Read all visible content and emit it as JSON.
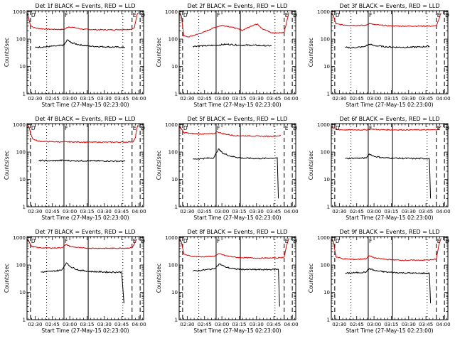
{
  "colors": {
    "events": "#000000",
    "lld": "#dd0000",
    "background": "#ffffff"
  },
  "shared": {
    "ylabel": "Counts/sec",
    "xlabel": "Start Time (27-May-15 02:23:00)",
    "x_ticks": [
      "02:30",
      "02:45",
      "03:00",
      "03:15",
      "03:30",
      "03:45",
      "04:00"
    ],
    "y_ticks": [
      "1",
      "10",
      "100",
      "1000"
    ],
    "y_scale": "log",
    "ylim": [
      1,
      1100
    ],
    "x_range_minutes": [
      0,
      101
    ],
    "x_tick_minutes": [
      7,
      22,
      37,
      52,
      67,
      82,
      97
    ],
    "markers": [
      "D",
      "F",
      "E",
      "D"
    ]
  },
  "chart_data": [
    {
      "type": "line",
      "title": "Det 1f BLACK = Events, RED = LLD",
      "red_segments": [
        [
          [
            0,
            900
          ],
          [
            1,
            700
          ],
          [
            3,
            320
          ],
          [
            6,
            260
          ],
          [
            12,
            240
          ],
          [
            20,
            230
          ],
          [
            32,
            225
          ],
          [
            36,
            280
          ],
          [
            40,
            270
          ],
          [
            48,
            230
          ],
          [
            60,
            220
          ],
          [
            72,
            220
          ],
          [
            85,
            225
          ],
          [
            91,
            230
          ],
          [
            93,
            260
          ],
          [
            95,
            700
          ],
          [
            96,
            900
          ]
        ]
      ],
      "black_segments": [
        [
          [
            7,
            50
          ],
          [
            15,
            52
          ],
          [
            25,
            56
          ],
          [
            32,
            60
          ],
          [
            35,
            95
          ],
          [
            38,
            75
          ],
          [
            45,
            62
          ],
          [
            55,
            55
          ],
          [
            70,
            52
          ],
          [
            85,
            50
          ]
        ]
      ],
      "vlines": [
        {
          "x": 3,
          "style": "dash"
        },
        {
          "x": 17,
          "style": "dot"
        },
        {
          "x": 32,
          "style": "solid"
        },
        {
          "x": 53,
          "style": "solid"
        },
        {
          "x": 83,
          "style": "dot"
        },
        {
          "x": 91,
          "style": "dash"
        },
        {
          "x": 98,
          "style": "dash"
        }
      ]
    },
    {
      "type": "line",
      "title": "Det 2f BLACK = Events, RED = LLD",
      "red_segments": [
        [
          [
            0,
            950
          ],
          [
            2,
            700
          ],
          [
            4,
            130
          ],
          [
            8,
            120
          ],
          [
            20,
            170
          ],
          [
            30,
            260
          ],
          [
            37,
            320
          ],
          [
            45,
            280
          ],
          [
            55,
            210
          ],
          [
            62,
            300
          ],
          [
            68,
            360
          ],
          [
            72,
            240
          ],
          [
            80,
            170
          ],
          [
            88,
            170
          ],
          [
            91,
            180
          ],
          [
            93,
            400
          ],
          [
            95,
            950
          ]
        ]
      ],
      "black_segments": [
        [
          [
            12,
            55
          ],
          [
            22,
            57
          ],
          [
            32,
            60
          ],
          [
            42,
            65
          ],
          [
            52,
            60
          ],
          [
            62,
            60
          ],
          [
            72,
            58
          ],
          [
            80,
            57
          ]
        ]
      ],
      "vlines": [
        {
          "x": 3,
          "style": "dash"
        },
        {
          "x": 17,
          "style": "dot"
        },
        {
          "x": 32,
          "style": "solid"
        },
        {
          "x": 53,
          "style": "solid"
        },
        {
          "x": 83,
          "style": "dot"
        },
        {
          "x": 91,
          "style": "dash"
        },
        {
          "x": 98,
          "style": "dash"
        }
      ]
    },
    {
      "type": "line",
      "title": "Det 3f BLACK = Events, RED = LLD",
      "red_segments": [
        [
          [
            0,
            900
          ],
          [
            2,
            700
          ],
          [
            4,
            360
          ],
          [
            10,
            330
          ],
          [
            20,
            320
          ],
          [
            30,
            320
          ],
          [
            33,
            380
          ],
          [
            37,
            340
          ],
          [
            48,
            310
          ],
          [
            60,
            300
          ],
          [
            75,
            300
          ],
          [
            88,
            300
          ],
          [
            91,
            310
          ],
          [
            93,
            500
          ],
          [
            95,
            900
          ]
        ]
      ],
      "black_segments": [
        [
          [
            12,
            50
          ],
          [
            16,
            48
          ],
          [
            28,
            52
          ],
          [
            33,
            65
          ],
          [
            37,
            58
          ],
          [
            48,
            52
          ],
          [
            65,
            50
          ],
          [
            78,
            52
          ],
          [
            85,
            55
          ]
        ]
      ],
      "vlines": [
        {
          "x": 3,
          "style": "dash"
        },
        {
          "x": 17,
          "style": "dot"
        },
        {
          "x": 32,
          "style": "solid"
        },
        {
          "x": 53,
          "style": "solid"
        },
        {
          "x": 83,
          "style": "dot"
        },
        {
          "x": 91,
          "style": "dash"
        },
        {
          "x": 98,
          "style": "dash"
        }
      ]
    },
    {
      "type": "line",
      "title": "Det 4f BLACK = Events, RED = LLD",
      "red_segments": [
        [
          [
            0,
            950
          ],
          [
            2,
            800
          ],
          [
            3,
            500
          ],
          [
            5,
            300
          ],
          [
            10,
            250
          ],
          [
            20,
            240
          ],
          [
            30,
            235
          ],
          [
            40,
            235
          ],
          [
            55,
            230
          ],
          [
            70,
            230
          ],
          [
            85,
            232
          ],
          [
            92,
            240
          ],
          [
            94,
            350
          ],
          [
            95,
            700
          ],
          [
            96,
            950
          ]
        ]
      ],
      "black_segments": [
        [
          [
            10,
            48
          ],
          [
            14,
            49
          ],
          [
            20,
            48
          ],
          [
            32,
            50
          ],
          [
            40,
            48
          ],
          [
            53,
            48
          ],
          [
            70,
            47
          ],
          [
            85,
            46
          ]
        ]
      ],
      "vlines": [
        {
          "x": 3,
          "style": "dash"
        },
        {
          "x": 17,
          "style": "dot"
        },
        {
          "x": 32,
          "style": "solid"
        },
        {
          "x": 53,
          "style": "solid"
        },
        {
          "x": 83,
          "style": "dot"
        },
        {
          "x": 91,
          "style": "dash"
        },
        {
          "x": 98,
          "style": "dash"
        }
      ]
    },
    {
      "type": "line",
      "title": "Det 5f BLACK = Events, RED = LLD",
      "red_segments": [
        [
          [
            0,
            900
          ],
          [
            2,
            700
          ],
          [
            4,
            520
          ],
          [
            10,
            480
          ],
          [
            20,
            460
          ],
          [
            30,
            470
          ],
          [
            33,
            560
          ],
          [
            37,
            480
          ],
          [
            48,
            400
          ],
          [
            60,
            390
          ],
          [
            72,
            380
          ],
          [
            83,
            380
          ],
          [
            85,
            390
          ],
          [
            88,
            400
          ]
        ]
      ],
      "black_segments": [
        [
          [
            12,
            55
          ],
          [
            20,
            58
          ],
          [
            30,
            62
          ],
          [
            34,
            130
          ],
          [
            38,
            90
          ],
          [
            45,
            70
          ],
          [
            55,
            60
          ],
          [
            70,
            58
          ],
          [
            80,
            60
          ],
          [
            85,
            62
          ],
          [
            86,
            2
          ]
        ]
      ],
      "vlines": [
        {
          "x": 3,
          "style": "dash"
        },
        {
          "x": 17,
          "style": "dot"
        },
        {
          "x": 32,
          "style": "solid"
        },
        {
          "x": 53,
          "style": "solid"
        },
        {
          "x": 83,
          "style": "dot"
        },
        {
          "x": 91,
          "style": "dash"
        },
        {
          "x": 98,
          "style": "dash"
        }
      ]
    },
    {
      "type": "line",
      "title": "Det 6f BLACK = Events, RED = LLD",
      "red_segments": [
        [
          [
            0,
            900
          ],
          [
            2,
            750
          ],
          [
            4,
            680
          ],
          [
            10,
            650
          ],
          [
            20,
            650
          ],
          [
            30,
            650
          ],
          [
            35,
            700
          ],
          [
            40,
            660
          ],
          [
            55,
            650
          ],
          [
            70,
            650
          ],
          [
            85,
            650
          ],
          [
            90,
            655
          ],
          [
            93,
            700
          ],
          [
            95,
            900
          ]
        ]
      ],
      "black_segments": [
        [
          [
            12,
            58
          ],
          [
            20,
            60
          ],
          [
            30,
            60
          ],
          [
            33,
            85
          ],
          [
            37,
            70
          ],
          [
            45,
            62
          ],
          [
            55,
            60
          ],
          [
            70,
            58
          ],
          [
            85,
            58
          ],
          [
            86,
            2
          ]
        ]
      ],
      "vlines": [
        {
          "x": 3,
          "style": "dash"
        },
        {
          "x": 17,
          "style": "dot"
        },
        {
          "x": 32,
          "style": "solid"
        },
        {
          "x": 53,
          "style": "solid"
        },
        {
          "x": 83,
          "style": "dot"
        },
        {
          "x": 91,
          "style": "dash"
        },
        {
          "x": 98,
          "style": "dash"
        }
      ]
    },
    {
      "type": "line",
      "title": "Det 7f BLACK = Events, RED = LLD",
      "red_segments": [
        [
          [
            0,
            900
          ],
          [
            2,
            700
          ],
          [
            4,
            480
          ],
          [
            10,
            430
          ],
          [
            20,
            420
          ],
          [
            30,
            430
          ],
          [
            34,
            560
          ],
          [
            38,
            470
          ],
          [
            48,
            420
          ],
          [
            60,
            410
          ],
          [
            75,
            410
          ],
          [
            88,
            420
          ],
          [
            91,
            430
          ],
          [
            93,
            600
          ],
          [
            95,
            900
          ]
        ]
      ],
      "black_segments": [
        [
          [
            12,
            55
          ],
          [
            20,
            58
          ],
          [
            30,
            65
          ],
          [
            34,
            120
          ],
          [
            38,
            85
          ],
          [
            45,
            65
          ],
          [
            55,
            58
          ],
          [
            70,
            55
          ],
          [
            82,
            55
          ],
          [
            84,
            4
          ]
        ]
      ],
      "vlines": [
        {
          "x": 3,
          "style": "dash"
        },
        {
          "x": 17,
          "style": "dot"
        },
        {
          "x": 32,
          "style": "solid"
        },
        {
          "x": 53,
          "style": "solid"
        },
        {
          "x": 83,
          "style": "dot"
        },
        {
          "x": 91,
          "style": "dash"
        },
        {
          "x": 98,
          "style": "dash"
        }
      ]
    },
    {
      "type": "line",
      "title": "Det 8f BLACK = Events, RED = LLD",
      "red_segments": [
        [
          [
            0,
            950
          ],
          [
            2,
            700
          ],
          [
            4,
            250
          ],
          [
            10,
            210
          ],
          [
            20,
            200
          ],
          [
            30,
            210
          ],
          [
            35,
            260
          ],
          [
            40,
            220
          ],
          [
            50,
            190
          ],
          [
            65,
            180
          ],
          [
            80,
            180
          ],
          [
            88,
            185
          ],
          [
            91,
            200
          ],
          [
            93,
            500
          ],
          [
            95,
            950
          ]
        ]
      ],
      "black_segments": [
        [
          [
            12,
            60
          ],
          [
            20,
            65
          ],
          [
            30,
            72
          ],
          [
            35,
            110
          ],
          [
            40,
            85
          ],
          [
            48,
            72
          ],
          [
            60,
            68
          ],
          [
            75,
            68
          ],
          [
            86,
            70
          ],
          [
            87,
            3
          ]
        ]
      ],
      "vlines": [
        {
          "x": 3,
          "style": "dash"
        },
        {
          "x": 17,
          "style": "dot"
        },
        {
          "x": 32,
          "style": "solid"
        },
        {
          "x": 53,
          "style": "solid"
        },
        {
          "x": 83,
          "style": "dot"
        },
        {
          "x": 91,
          "style": "dash"
        },
        {
          "x": 98,
          "style": "dash"
        }
      ]
    },
    {
      "type": "line",
      "title": "Det 9f BLACK = Events, RED = LLD",
      "red_segments": [
        [
          [
            0,
            950
          ],
          [
            2,
            700
          ],
          [
            4,
            200
          ],
          [
            10,
            170
          ],
          [
            20,
            160
          ],
          [
            30,
            170
          ],
          [
            33,
            220
          ],
          [
            38,
            180
          ],
          [
            48,
            160
          ],
          [
            60,
            150
          ],
          [
            75,
            150
          ],
          [
            88,
            155
          ],
          [
            91,
            170
          ],
          [
            93,
            500
          ],
          [
            95,
            950
          ]
        ]
      ],
      "black_segments": [
        [
          [
            12,
            50
          ],
          [
            20,
            52
          ],
          [
            30,
            55
          ],
          [
            33,
            75
          ],
          [
            38,
            62
          ],
          [
            48,
            55
          ],
          [
            60,
            52
          ],
          [
            75,
            50
          ],
          [
            85,
            50
          ],
          [
            86,
            4
          ]
        ]
      ],
      "vlines": [
        {
          "x": 3,
          "style": "dash"
        },
        {
          "x": 17,
          "style": "dot"
        },
        {
          "x": 32,
          "style": "solid"
        },
        {
          "x": 53,
          "style": "solid"
        },
        {
          "x": 83,
          "style": "dot"
        },
        {
          "x": 91,
          "style": "dash"
        },
        {
          "x": 98,
          "style": "dash"
        }
      ]
    }
  ]
}
